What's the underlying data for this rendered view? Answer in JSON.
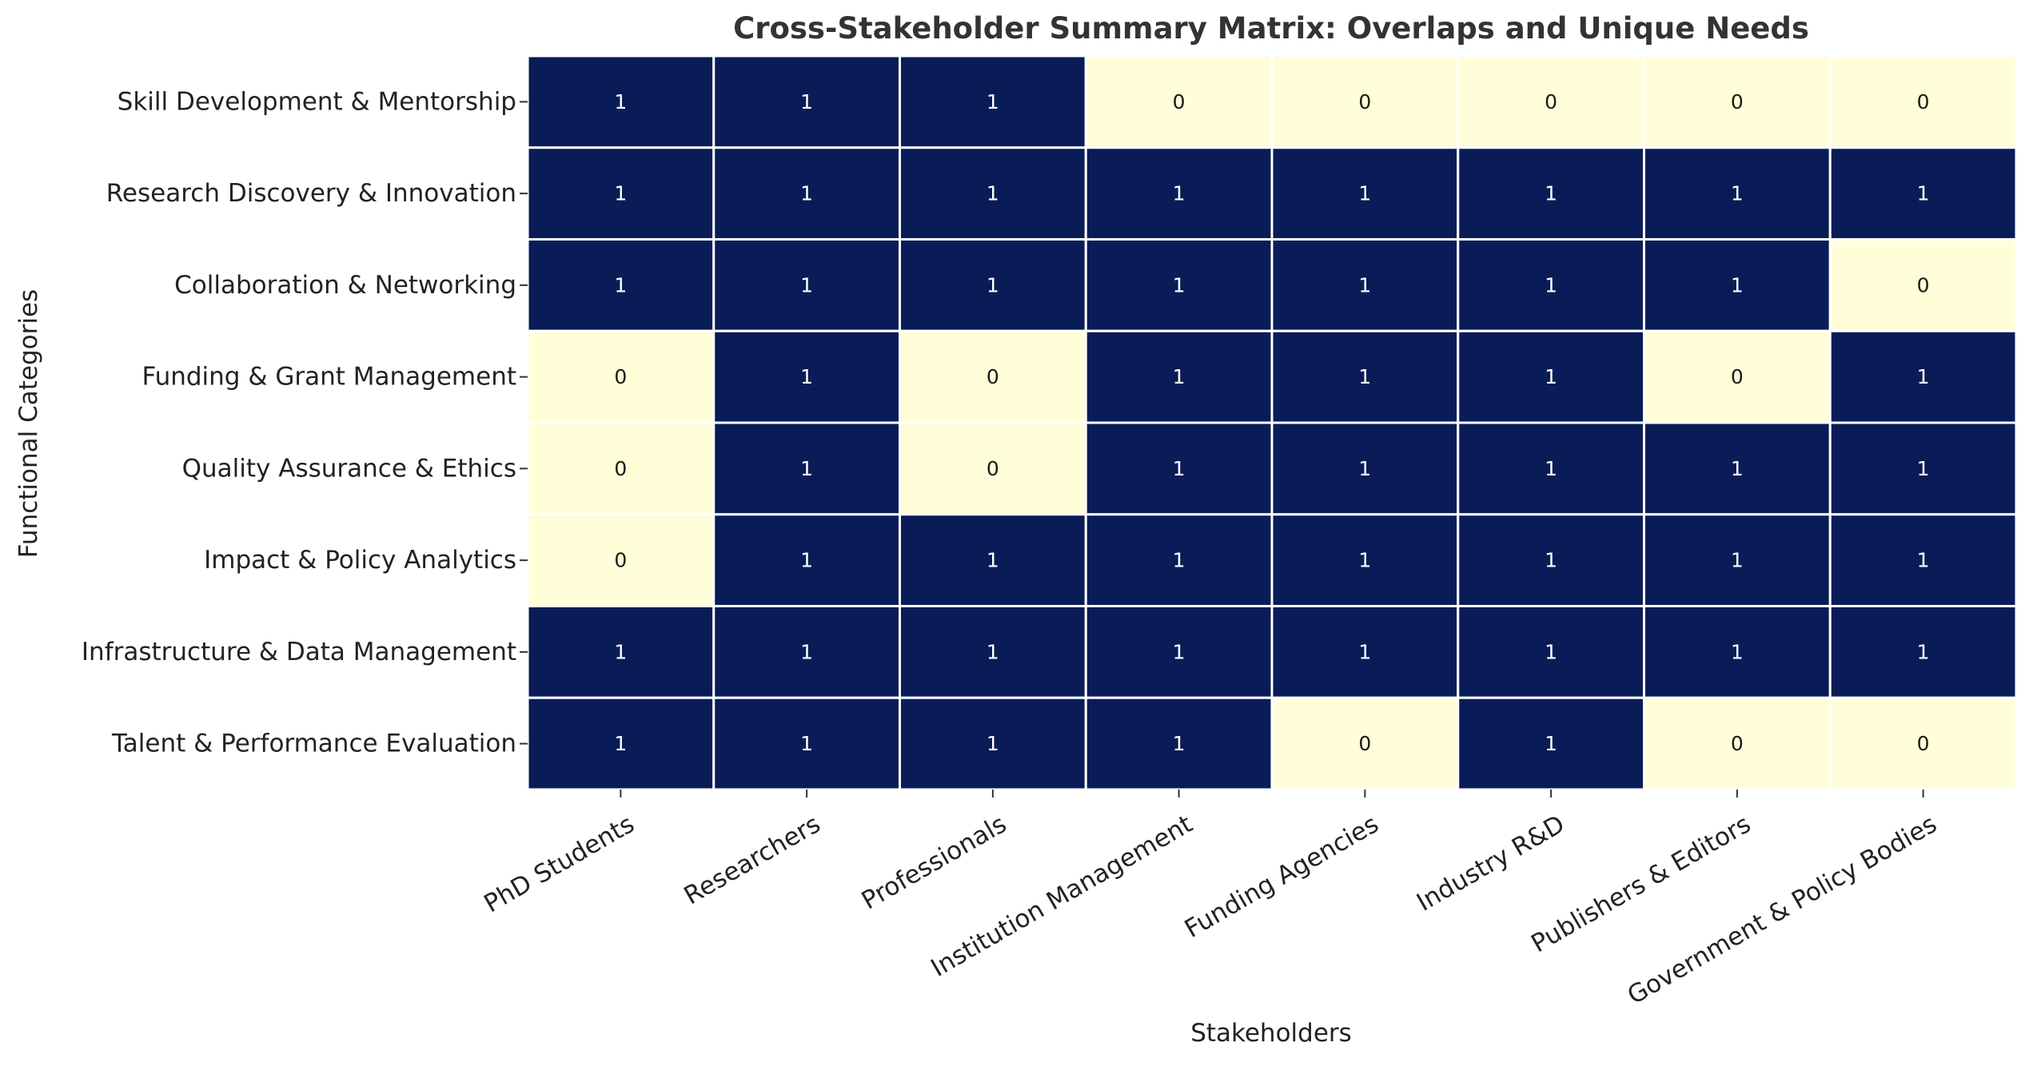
{
  "chart_data": {
    "type": "heatmap",
    "title": "Cross-Stakeholder Summary Matrix: Overlaps and Unique Needs",
    "xlabel": "Stakeholders",
    "ylabel": "Functional Categories",
    "columns": [
      "PhD Students",
      "Researchers",
      "Professionals",
      "Institution Management",
      "Funding Agencies",
      "Industry R&D",
      "Publishers & Editors",
      "Government & Policy Bodies"
    ],
    "rows": [
      "Skill Development & Mentorship",
      "Research Discovery & Innovation",
      "Collaboration & Networking",
      "Funding & Grant Management",
      "Quality Assurance & Ethics",
      "Impact & Policy Analytics",
      "Infrastructure & Data Management",
      "Talent & Performance Evaluation"
    ],
    "values": [
      [
        1,
        1,
        1,
        0,
        0,
        0,
        0,
        0
      ],
      [
        1,
        1,
        1,
        1,
        1,
        1,
        1,
        1
      ],
      [
        1,
        1,
        1,
        1,
        1,
        1,
        1,
        0
      ],
      [
        0,
        1,
        0,
        1,
        1,
        1,
        0,
        1
      ],
      [
        0,
        1,
        0,
        1,
        1,
        1,
        1,
        1
      ],
      [
        0,
        1,
        1,
        1,
        1,
        1,
        1,
        1
      ],
      [
        1,
        1,
        1,
        1,
        1,
        1,
        1,
        1
      ],
      [
        1,
        1,
        1,
        1,
        0,
        1,
        0,
        0
      ]
    ],
    "colors": {
      "high": "#0a1c57",
      "low": "#fffed8",
      "text_on_high": "#ffffff",
      "text_on_low": "#1a1a1a"
    },
    "annotated": true
  }
}
